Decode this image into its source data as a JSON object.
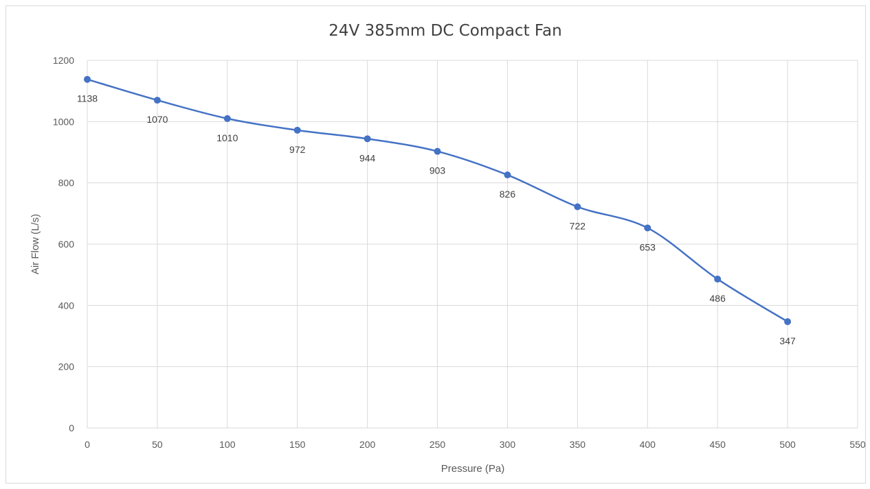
{
  "chart_data": {
    "type": "line",
    "title": "24V 385mm DC Compact Fan",
    "xlabel": "Pressure (Pa)",
    "ylabel": "Air Flow (L/s)",
    "xlim": [
      0,
      550
    ],
    "ylim": [
      0,
      1200
    ],
    "x_ticks": [
      0,
      50,
      100,
      150,
      200,
      250,
      300,
      350,
      400,
      450,
      500,
      550
    ],
    "y_ticks": [
      0,
      200,
      400,
      600,
      800,
      1000,
      1200
    ],
    "x": [
      0,
      50,
      100,
      150,
      200,
      250,
      300,
      350,
      400,
      450,
      500
    ],
    "series": [
      {
        "values": [
          1138,
          1070,
          1010,
          972,
          944,
          903,
          826,
          722,
          653,
          486,
          347
        ]
      }
    ],
    "data_labels": [
      "1138",
      "1070",
      "1010",
      "972",
      "944",
      "903",
      "826",
      "722",
      "653",
      "486",
      "347"
    ],
    "grid": true,
    "legend": "none",
    "line_color": "#4472c4",
    "smooth": true
  }
}
